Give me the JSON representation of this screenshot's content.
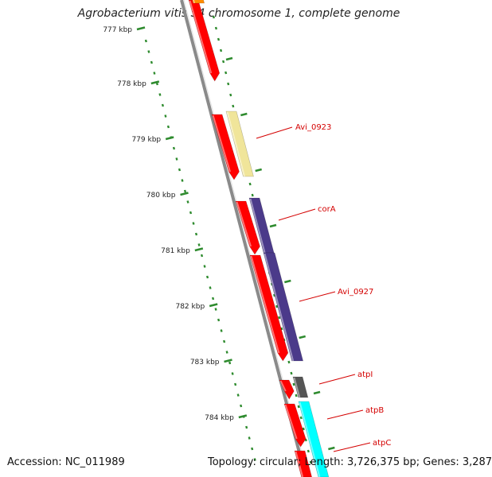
{
  "title": "Agrobacterium vitis S4 chromosome 1, complete genome",
  "footer": {
    "accession": "Accession: NC_011989",
    "stats": "Topology: circular; Length: 3,726,375 bp; Genes: 3,287"
  },
  "ruler": {
    "ticks": [
      {
        "label": "777 kbp",
        "value": 777
      },
      {
        "label": "778 kbp",
        "value": 778
      },
      {
        "label": "779 kbp",
        "value": 779
      },
      {
        "label": "780 kbp",
        "value": 780
      },
      {
        "label": "781 kbp",
        "value": 781
      },
      {
        "label": "782 kbp",
        "value": 782
      },
      {
        "label": "783 kbp",
        "value": 783
      },
      {
        "label": "784 kbp",
        "value": 784
      }
    ]
  },
  "colors": {
    "cds": "#ff0000",
    "pale_gene": "#f0e59a",
    "corA_gene": "#4b3a8a",
    "atpI_gene": "#555555",
    "atp_gene": "#00ffff",
    "orange_gene": "#ff8c00",
    "gc_dots": "#2e8b2e",
    "backbone": "#888888",
    "label": "#d40000"
  },
  "gene_labels": [
    {
      "name": "Avi_0923"
    },
    {
      "name": "corA"
    },
    {
      "name": "Avi_0927"
    },
    {
      "name": "atpI"
    },
    {
      "name": "atpB"
    },
    {
      "name": "atpC"
    }
  ]
}
